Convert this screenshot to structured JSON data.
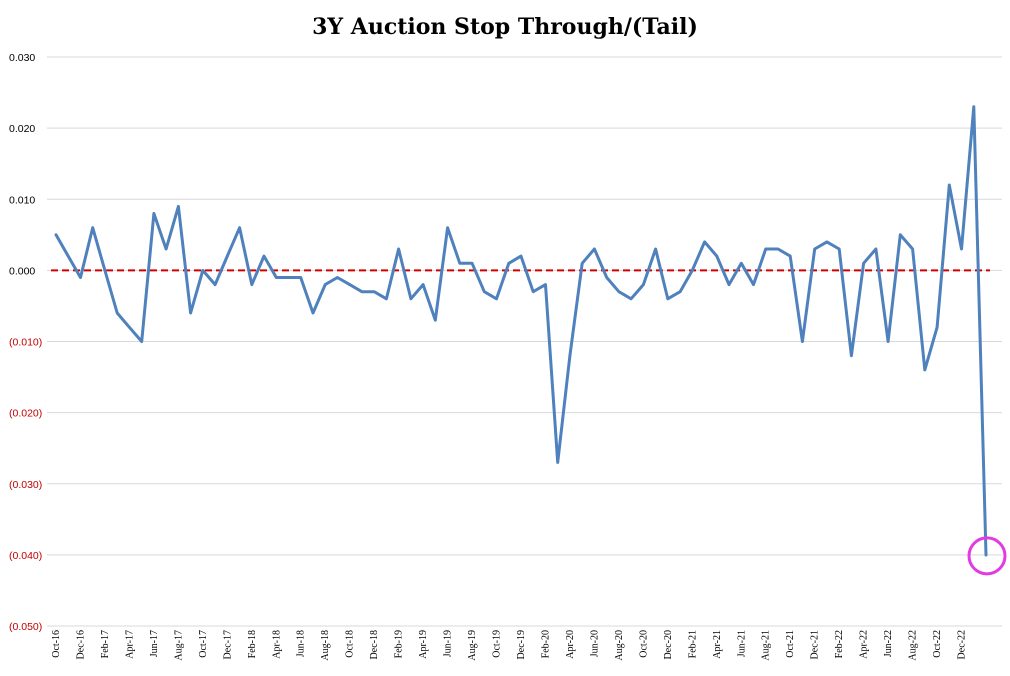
{
  "chart_data": {
    "type": "line",
    "title": "3Y Auction Stop Through/(Tail)",
    "xlabel": "",
    "ylabel": "",
    "ylim": [
      -0.05,
      0.03
    ],
    "yticks": [
      {
        "value": 0.03,
        "label": "0.030"
      },
      {
        "value": 0.02,
        "label": "0.020"
      },
      {
        "value": 0.01,
        "label": "0.010"
      },
      {
        "value": 0.0,
        "label": "0.000"
      },
      {
        "value": -0.01,
        "label": "(0.010)"
      },
      {
        "value": -0.02,
        "label": "(0.020)"
      },
      {
        "value": -0.03,
        "label": "(0.030)"
      },
      {
        "value": -0.04,
        "label": "(0.040)"
      },
      {
        "value": -0.05,
        "label": "(0.050)"
      }
    ],
    "x_tick_labels": [
      "Oct-16",
      "Dec-16",
      "Feb-17",
      "Apr-17",
      "Jun-17",
      "Aug-17",
      "Oct-17",
      "Dec-17",
      "Feb-18",
      "Apr-18",
      "Jun-18",
      "Aug-18",
      "Oct-18",
      "Dec-18",
      "Feb-19",
      "Apr-19",
      "Jun-19",
      "Aug-19",
      "Oct-19",
      "Dec-19",
      "Feb-20",
      "Apr-20",
      "Jun-20",
      "Aug-20",
      "Oct-20",
      "Dec-20",
      "Feb-21",
      "Apr-21",
      "Jun-21",
      "Aug-21",
      "Oct-21",
      "Dec-21",
      "Feb-22",
      "Apr-22",
      "Jun-22",
      "Aug-22",
      "Oct-22",
      "Dec-22"
    ],
    "grid": true,
    "legend": "none",
    "series": [
      {
        "values": [
          0.005,
          0.002,
          -0.001,
          0.006,
          0.0,
          -0.006,
          -0.008,
          -0.01,
          0.008,
          0.003,
          0.009,
          -0.006,
          0.0,
          -0.002,
          0.002,
          0.006,
          -0.002,
          0.002,
          -0.001,
          -0.001,
          -0.001,
          -0.006,
          -0.002,
          -0.001,
          -0.002,
          -0.003,
          -0.003,
          -0.004,
          0.003,
          -0.004,
          -0.002,
          -0.007,
          0.006,
          0.001,
          0.001,
          -0.003,
          -0.004,
          0.001,
          0.002,
          -0.003,
          -0.002,
          -0.027,
          -0.012,
          0.001,
          0.003,
          -0.001,
          -0.003,
          -0.004,
          -0.002,
          0.003,
          -0.004,
          -0.003,
          0.0,
          0.004,
          0.002,
          -0.002,
          0.001,
          -0.002,
          0.003,
          0.003,
          0.002,
          -0.01,
          0.003,
          0.004,
          0.003,
          -0.012,
          0.001,
          0.003,
          -0.01,
          0.005,
          0.003,
          -0.014,
          -0.008,
          0.012,
          0.003,
          0.023,
          -0.04
        ]
      }
    ],
    "reference_line": {
      "value": 0.0,
      "style": "dashed"
    },
    "highlight": {
      "point_index": 76,
      "shape": "circle"
    },
    "colors": {
      "line": "#4f81bd",
      "reference_line": "#d00000",
      "highlight": "#e23be2",
      "grid": "#d9d9d9",
      "negative_label": "#c00000",
      "positive_label": "#000000"
    }
  }
}
